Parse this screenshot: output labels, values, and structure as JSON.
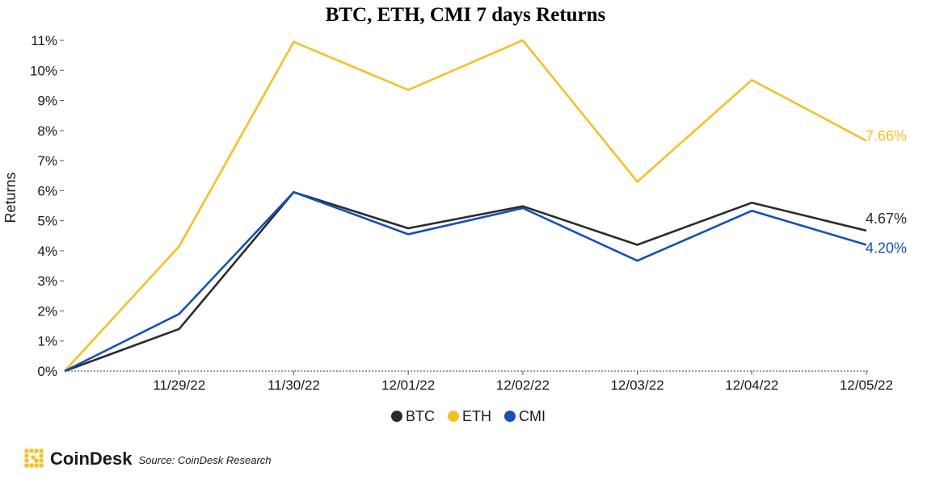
{
  "chart_data": {
    "type": "line",
    "title": "BTC, ETH, CMI 7 days Returns",
    "ylabel": "Returns",
    "xlabel": "",
    "x_labels": [
      "11/29/22",
      "11/30/22",
      "12/01/22",
      "12/02/22",
      "12/03/22",
      "12/04/22",
      "12/05/22"
    ],
    "y_ticks": [
      "0%",
      "1%",
      "2%",
      "3%",
      "4%",
      "5%",
      "6%",
      "7%",
      "8%",
      "9%",
      "10%",
      "11%"
    ],
    "ylim": [
      0,
      11
    ],
    "grid": false,
    "legend_position": "bottom",
    "series": [
      {
        "name": "BTC",
        "color": "#2b2b2b",
        "values": [
          0,
          1.4,
          5.95,
          4.75,
          5.48,
          4.2,
          5.6,
          4.67
        ],
        "end_label": "4.67%"
      },
      {
        "name": "ETH",
        "color": "#f5c026",
        "values": [
          0,
          4.15,
          10.95,
          9.35,
          11.0,
          6.3,
          9.68,
          7.66
        ],
        "end_label": "7.66%"
      },
      {
        "name": "CMI",
        "color": "#1650b8",
        "values": [
          0,
          1.9,
          5.95,
          4.55,
          5.42,
          3.67,
          5.33,
          4.2
        ],
        "end_label": "4.20%"
      }
    ]
  },
  "brand": {
    "name": "CoinDesk",
    "source": "Source: CoinDesk Research",
    "logo_color": "#f5c026"
  }
}
